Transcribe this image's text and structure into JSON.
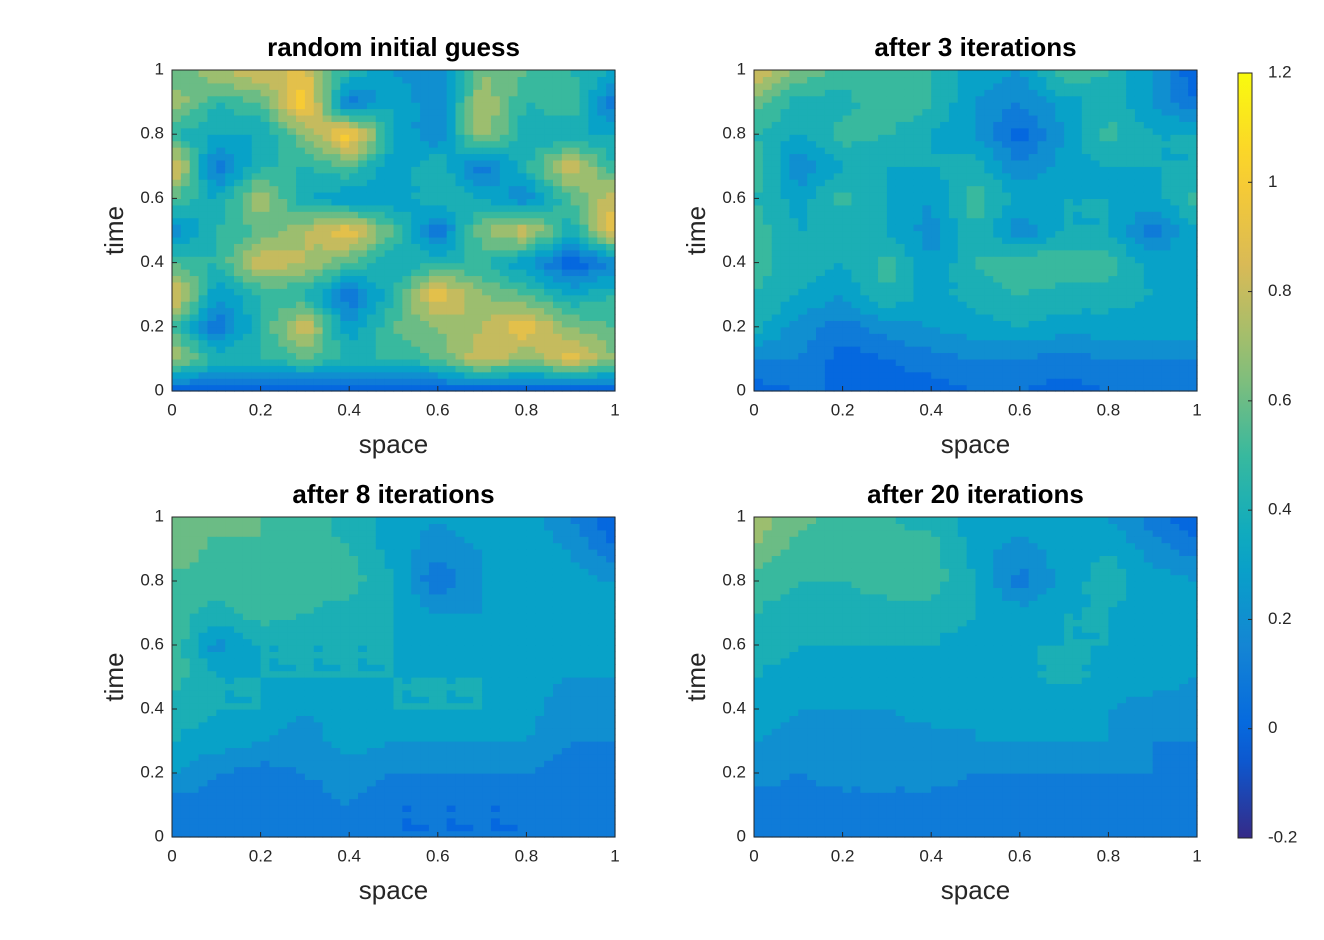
{
  "chart_data": [
    {
      "type": "contour",
      "title": "random initial guess",
      "x_label": "space",
      "y_label": "time",
      "x": [
        0,
        0.1,
        0.2,
        0.3,
        0.4,
        0.5,
        0.6,
        0.7,
        0.8,
        0.9,
        1
      ],
      "y": [
        0,
        0.1,
        0.2,
        0.3,
        0.4,
        0.5,
        0.6,
        0.7,
        0.8,
        0.9,
        1
      ],
      "z": [
        [
          0,
          0,
          0,
          0,
          0,
          0,
          0,
          0,
          0,
          0,
          0
        ],
        [
          0.8,
          0.5,
          0.5,
          0.6,
          0.5,
          0.5,
          0.6,
          0.9,
          0.7,
          0.95,
          0.7
        ],
        [
          0.6,
          0.1,
          0.5,
          0.9,
          0.3,
          0.6,
          0.7,
          0.8,
          1.0,
          0.7,
          0.6
        ],
        [
          1.0,
          0.3,
          0.5,
          0.5,
          0.1,
          0.5,
          1.0,
          0.7,
          0.6,
          0.4,
          0.5
        ],
        [
          0.6,
          0.5,
          0.9,
          0.8,
          0.6,
          0.4,
          0.5,
          0.5,
          0.3,
          0,
          0.2
        ],
        [
          0.2,
          0.5,
          0.6,
          0.8,
          1.0,
          0.6,
          0.1,
          0.7,
          0.9,
          0.4,
          1.0
        ],
        [
          0.6,
          0.4,
          0.8,
          0.4,
          0.3,
          0.3,
          0.5,
          0.4,
          0.2,
          0.6,
          0.9
        ],
        [
          1.0,
          0.1,
          0.5,
          0.5,
          0.6,
          0.3,
          0.5,
          0.1,
          0.5,
          0.9,
          0.5
        ],
        [
          0.5,
          0.4,
          0.4,
          0.7,
          1.1,
          0.4,
          0.2,
          0.8,
          0.4,
          0.4,
          0.4
        ],
        [
          0.8,
          0.5,
          0.6,
          1.1,
          0.1,
          0.4,
          0.2,
          0.8,
          0.5,
          0.6,
          0.1
        ],
        [
          0.6,
          0.8,
          0.9,
          0.9,
          0.5,
          0.3,
          0.2,
          0.7,
          0.6,
          0.5,
          0.4
        ]
      ],
      "xlim": [
        0,
        1
      ],
      "ylim": [
        0,
        1
      ],
      "xticks": [
        0,
        0.2,
        0.4,
        0.6,
        0.8,
        1
      ],
      "yticks": [
        0,
        0.2,
        0.4,
        0.6,
        0.8,
        1
      ]
    },
    {
      "type": "contour",
      "title": "after 3 iterations",
      "x_label": "space",
      "y_label": "time",
      "x": [
        0,
        0.1,
        0.2,
        0.3,
        0.4,
        0.5,
        0.6,
        0.7,
        0.8,
        0.9,
        1
      ],
      "y": [
        0,
        0.1,
        0.2,
        0.3,
        0.4,
        0.5,
        0.6,
        0.7,
        0.8,
        0.9,
        1
      ],
      "z": [
        [
          0.05,
          0.1,
          0.1,
          0.05,
          0.05,
          0.1,
          0.1,
          0.05,
          0.1,
          0.1,
          0.1
        ],
        [
          0.2,
          0.2,
          0.05,
          0.1,
          0.15,
          0.2,
          0.2,
          0.15,
          0.2,
          0.2,
          0.2
        ],
        [
          0.45,
          0.25,
          0.15,
          0.25,
          0.3,
          0.35,
          0.4,
          0.35,
          0.35,
          0.35,
          0.4
        ],
        [
          0.5,
          0.4,
          0.3,
          0.5,
          0.35,
          0.45,
          0.5,
          0.45,
          0.45,
          0.4,
          0.4
        ],
        [
          0.55,
          0.45,
          0.4,
          0.55,
          0.3,
          0.5,
          0.6,
          0.6,
          0.55,
          0.35,
          0.4
        ],
        [
          0.55,
          0.4,
          0.4,
          0.4,
          0.25,
          0.5,
          0.2,
          0.4,
          0.4,
          0.15,
          0.4
        ],
        [
          0.5,
          0.35,
          0.55,
          0.4,
          0.3,
          0.55,
          0.4,
          0.4,
          0.4,
          0.35,
          0.55
        ],
        [
          0.6,
          0.2,
          0.4,
          0.4,
          0.4,
          0.45,
          0.2,
          0.35,
          0.4,
          0.4,
          0.4
        ],
        [
          0.5,
          0.4,
          0.55,
          0.5,
          0.4,
          0.3,
          0.05,
          0.3,
          0.55,
          0.4,
          0.4
        ],
        [
          0.65,
          0.45,
          0.45,
          0.6,
          0.5,
          0.3,
          0.2,
          0.35,
          0.45,
          0.3,
          0.1
        ],
        [
          0.95,
          0.7,
          0.55,
          0.6,
          0.5,
          0.35,
          0.3,
          0.6,
          0.5,
          0.3,
          0.0
        ]
      ],
      "xlim": [
        0,
        1
      ],
      "ylim": [
        0,
        1
      ],
      "xticks": [
        0,
        0.2,
        0.4,
        0.6,
        0.8,
        1
      ],
      "yticks": [
        0,
        0.2,
        0.4,
        0.6,
        0.8,
        1
      ]
    },
    {
      "type": "contour",
      "title": "after 8 iterations",
      "x_label": "space",
      "y_label": "time",
      "x": [
        0,
        0.1,
        0.2,
        0.3,
        0.4,
        0.5,
        0.6,
        0.7,
        0.8,
        0.9,
        1
      ],
      "y": [
        0,
        0.1,
        0.2,
        0.3,
        0.4,
        0.5,
        0.6,
        0.7,
        0.8,
        0.9,
        1
      ],
      "z": [
        [
          0.1,
          0.1,
          0.1,
          0.1,
          0.1,
          0.1,
          0.1,
          0.1,
          0.1,
          0.1,
          0.1
        ],
        [
          0.15,
          0.15,
          0.2,
          0.15,
          0.2,
          0.1,
          0.1,
          0.1,
          0.1,
          0.15,
          0.1
        ],
        [
          0.3,
          0.2,
          0.15,
          0.2,
          0.25,
          0.2,
          0.2,
          0.2,
          0.2,
          0.15,
          0.15
        ],
        [
          0.4,
          0.35,
          0.3,
          0.25,
          0.35,
          0.3,
          0.3,
          0.3,
          0.3,
          0.2,
          0.2
        ],
        [
          0.45,
          0.4,
          0.4,
          0.3,
          0.35,
          0.4,
          0.4,
          0.4,
          0.35,
          0.2,
          0.25
        ],
        [
          0.55,
          0.4,
          0.4,
          0.4,
          0.4,
          0.4,
          0.4,
          0.4,
          0.35,
          0.3,
          0.3
        ],
        [
          0.6,
          0.25,
          0.4,
          0.4,
          0.4,
          0.4,
          0.35,
          0.4,
          0.4,
          0.3,
          0.35
        ],
        [
          0.55,
          0.45,
          0.55,
          0.5,
          0.45,
          0.4,
          0.3,
          0.3,
          0.35,
          0.4,
          0.4
        ],
        [
          0.55,
          0.55,
          0.55,
          0.55,
          0.55,
          0.4,
          0.1,
          0.3,
          0.35,
          0.35,
          0.3
        ],
        [
          0.7,
          0.55,
          0.6,
          0.55,
          0.5,
          0.35,
          0.25,
          0.3,
          0.35,
          0.3,
          0.1
        ],
        [
          0.7,
          0.65,
          0.6,
          0.55,
          0.45,
          0.35,
          0.3,
          0.35,
          0.35,
          0.2,
          0.0
        ]
      ],
      "xlim": [
        0,
        1
      ],
      "ylim": [
        0,
        1
      ],
      "xticks": [
        0,
        0.2,
        0.4,
        0.6,
        0.8,
        1
      ],
      "yticks": [
        0,
        0.2,
        0.4,
        0.6,
        0.8,
        1
      ]
    },
    {
      "type": "contour",
      "title": "after 20 iterations",
      "x_label": "space",
      "y_label": "time",
      "x": [
        0,
        0.1,
        0.2,
        0.3,
        0.4,
        0.5,
        0.6,
        0.7,
        0.8,
        0.9,
        1
      ],
      "y": [
        0,
        0.1,
        0.2,
        0.3,
        0.4,
        0.5,
        0.6,
        0.7,
        0.8,
        0.9,
        1
      ],
      "z": [
        [
          0.1,
          0.1,
          0.1,
          0.1,
          0.1,
          0.1,
          0.1,
          0.1,
          0.1,
          0.1,
          0.1
        ],
        [
          0.15,
          0.15,
          0.15,
          0.15,
          0.15,
          0.15,
          0.15,
          0.15,
          0.15,
          0.15,
          0.15
        ],
        [
          0.25,
          0.2,
          0.25,
          0.25,
          0.25,
          0.2,
          0.2,
          0.2,
          0.2,
          0.2,
          0.15
        ],
        [
          0.3,
          0.25,
          0.25,
          0.25,
          0.25,
          0.3,
          0.3,
          0.3,
          0.3,
          0.2,
          0.2
        ],
        [
          0.35,
          0.3,
          0.3,
          0.3,
          0.35,
          0.3,
          0.3,
          0.3,
          0.3,
          0.25,
          0.25
        ],
        [
          0.4,
          0.35,
          0.35,
          0.35,
          0.35,
          0.35,
          0.35,
          0.45,
          0.35,
          0.35,
          0.3
        ],
        [
          0.45,
          0.4,
          0.4,
          0.4,
          0.4,
          0.35,
          0.4,
          0.4,
          0.4,
          0.35,
          0.3
        ],
        [
          0.5,
          0.45,
          0.45,
          0.45,
          0.45,
          0.4,
          0.35,
          0.4,
          0.4,
          0.35,
          0.3
        ],
        [
          0.55,
          0.5,
          0.5,
          0.55,
          0.55,
          0.4,
          0.15,
          0.35,
          0.45,
          0.35,
          0.3
        ],
        [
          0.7,
          0.55,
          0.55,
          0.55,
          0.55,
          0.35,
          0.25,
          0.35,
          0.4,
          0.25,
          0.15
        ],
        [
          0.75,
          0.65,
          0.55,
          0.5,
          0.45,
          0.35,
          0.35,
          0.35,
          0.3,
          0.15,
          0.0
        ]
      ],
      "xlim": [
        0,
        1
      ],
      "ylim": [
        0,
        1
      ],
      "xticks": [
        0,
        0.2,
        0.4,
        0.6,
        0.8,
        1
      ],
      "yticks": [
        0,
        0.2,
        0.4,
        0.6,
        0.8,
        1
      ]
    }
  ],
  "colorbar": {
    "clim": [
      -0.2,
      1.2
    ],
    "ticks": [
      -0.2,
      0,
      0.2,
      0.4,
      0.6,
      0.8,
      1,
      1.2
    ],
    "colormap": "parula",
    "contour_levels": [
      -0.2,
      -0.1,
      0,
      0.1,
      0.2,
      0.3,
      0.4,
      0.5,
      0.6,
      0.7,
      0.8,
      0.9,
      1,
      1.1,
      1.2
    ]
  }
}
